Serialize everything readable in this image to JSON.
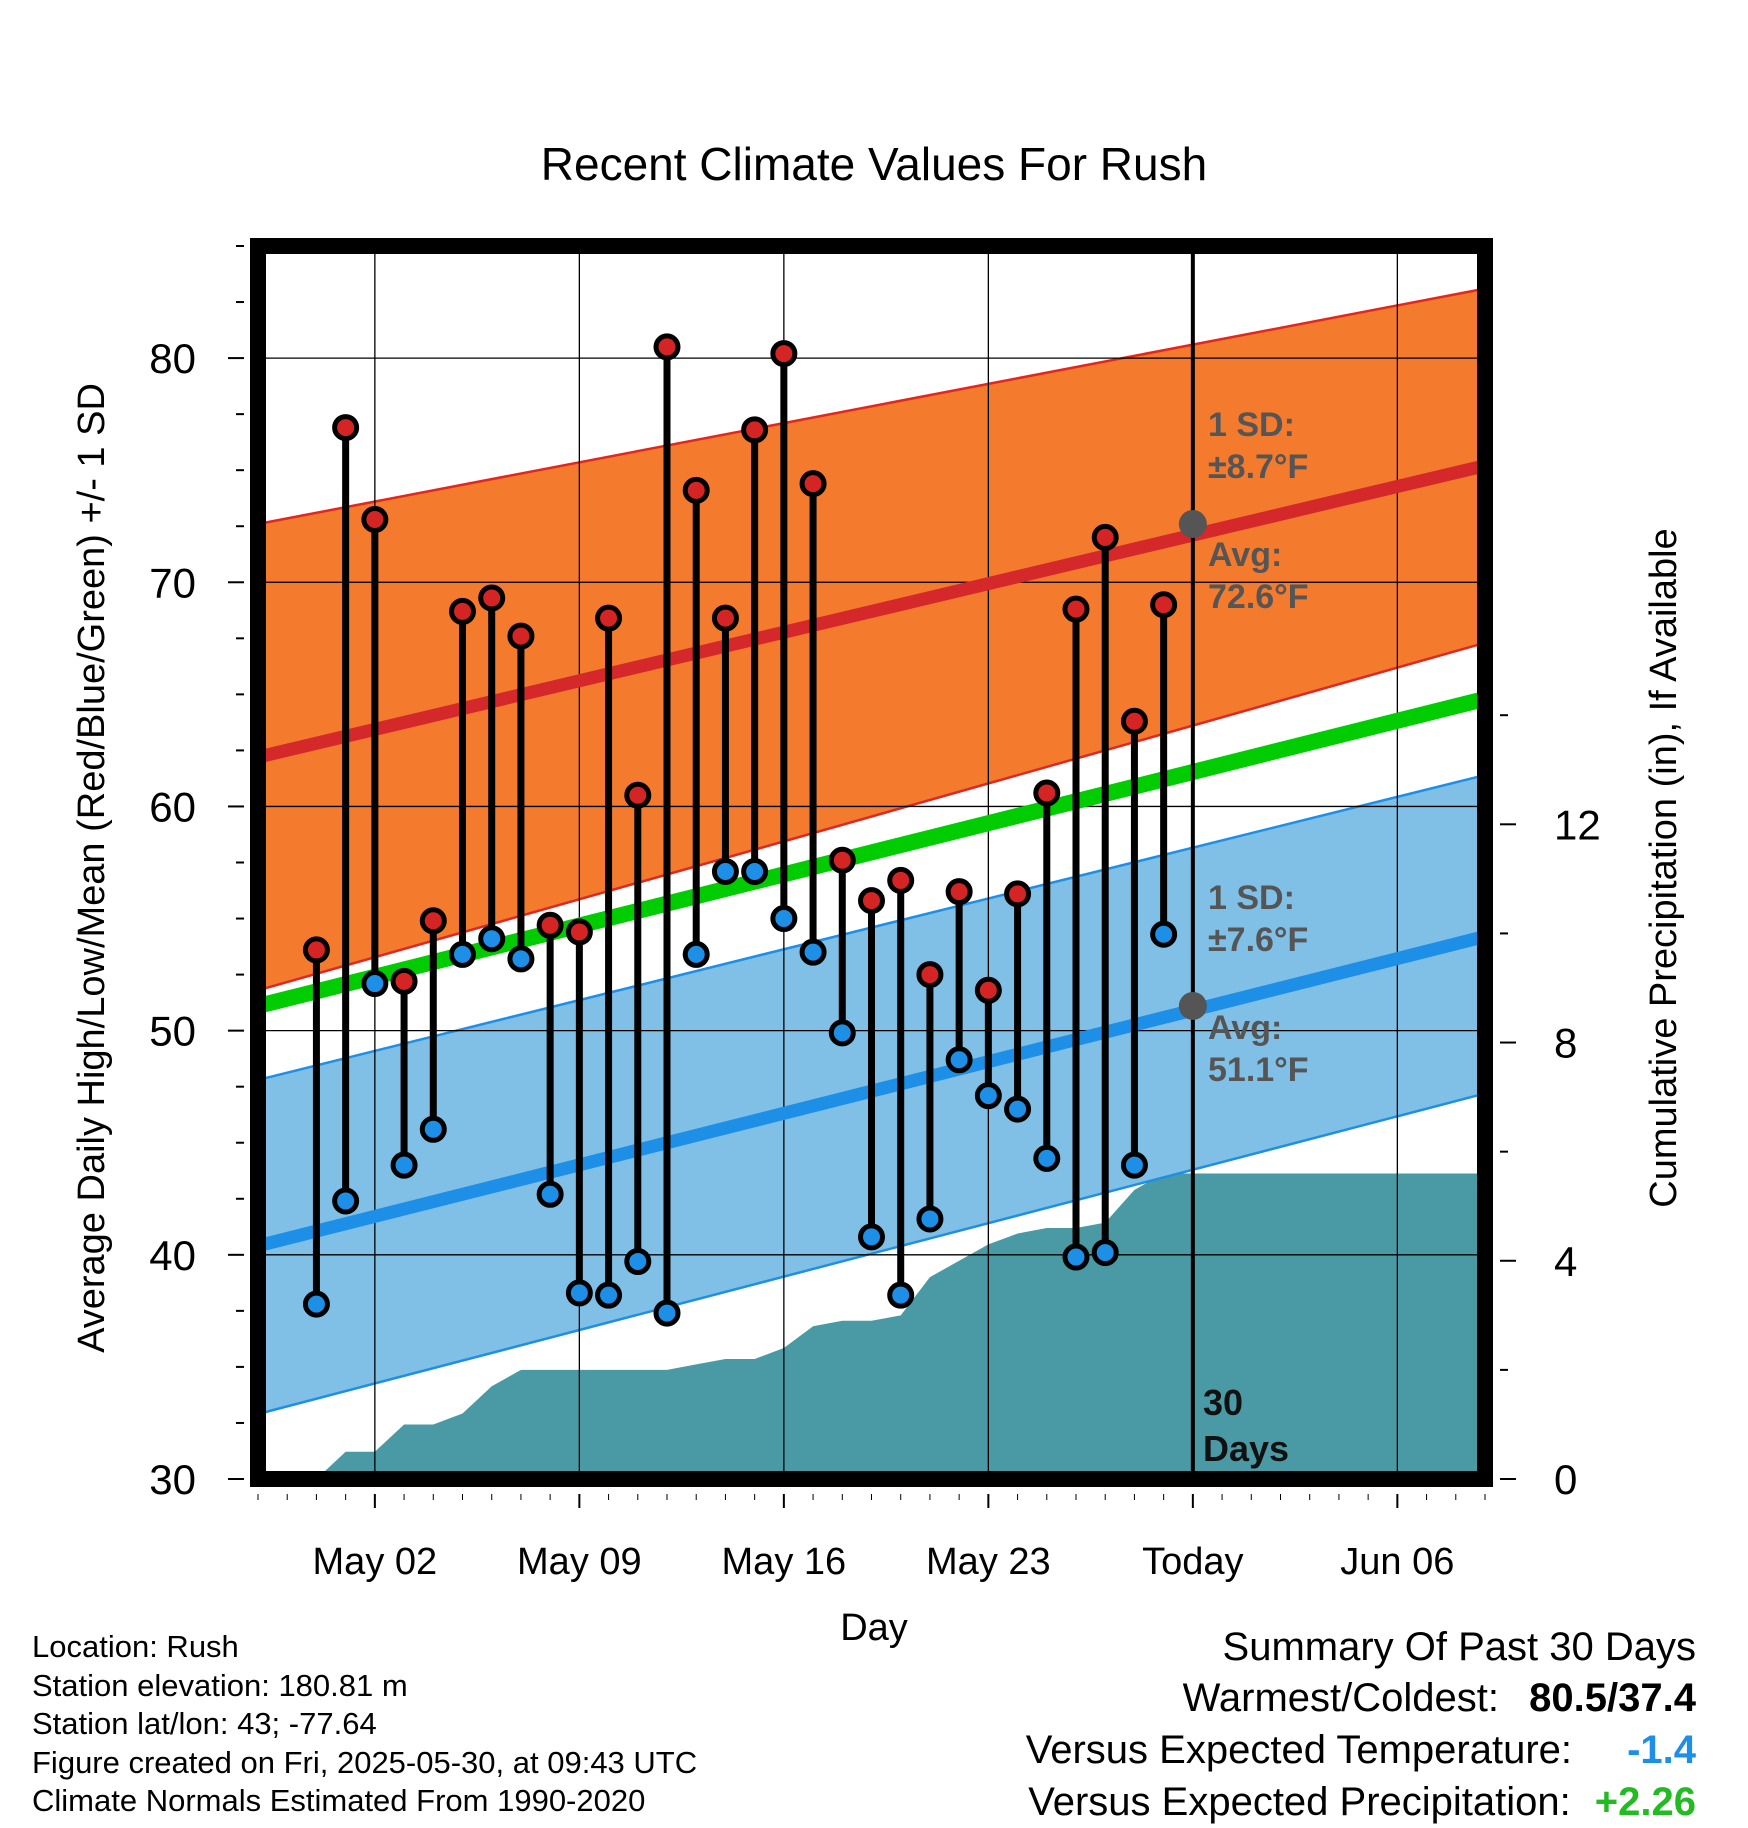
{
  "chart_data": {
    "type": "line",
    "title": "Recent Climate Values For Rush",
    "xlabel": "Day",
    "ylabel": "Average Daily High/Low/Mean (Red/Blue/Green) +/- 1 SD",
    "y2label": "Cumulative Precipitation (in), If Available",
    "ylim": [
      30,
      85
    ],
    "y2lim": [
      0,
      22.6
    ],
    "xlim": [
      "2025-04-28",
      "2025-06-09"
    ],
    "grid": true,
    "x_ticks": [
      {
        "date": "2025-05-02",
        "label": "May 02"
      },
      {
        "date": "2025-05-09",
        "label": "May 09"
      },
      {
        "date": "2025-05-16",
        "label": "May 16"
      },
      {
        "date": "2025-05-23",
        "label": "May 23"
      },
      {
        "date": "2025-05-30",
        "label": "Today"
      },
      {
        "date": "2025-06-06",
        "label": "Jun 06"
      }
    ],
    "y_ticks": [
      30,
      40,
      50,
      60,
      70,
      80
    ],
    "y2_ticks": [
      0,
      4,
      8,
      12
    ],
    "normals": {
      "x": [
        "2025-04-28",
        "2025-06-09"
      ],
      "high_avg": [
        62.2,
        75.2
      ],
      "high_sd_upper": [
        72.6,
        83.1
      ],
      "high_sd_lower": [
        51.8,
        67.3
      ],
      "mean_avg": [
        51.1,
        64.8
      ],
      "low_avg": [
        40.4,
        54.2
      ],
      "low_sd_upper": [
        47.8,
        61.4
      ],
      "low_sd_lower": [
        32.9,
        47.2
      ]
    },
    "series": [
      {
        "name": "High",
        "color": "#d42424",
        "x": [
          "2025-04-30",
          "2025-05-01",
          "2025-05-02",
          "2025-05-03",
          "2025-05-04",
          "2025-05-05",
          "2025-05-06",
          "2025-05-07",
          "2025-05-08",
          "2025-05-09",
          "2025-05-10",
          "2025-05-11",
          "2025-05-12",
          "2025-05-13",
          "2025-05-14",
          "2025-05-15",
          "2025-05-16",
          "2025-05-17",
          "2025-05-18",
          "2025-05-19",
          "2025-05-20",
          "2025-05-21",
          "2025-05-22",
          "2025-05-23",
          "2025-05-24",
          "2025-05-25",
          "2025-05-26",
          "2025-05-27",
          "2025-05-28",
          "2025-05-29"
        ],
        "values": [
          53.6,
          76.9,
          72.8,
          52.2,
          54.9,
          68.7,
          69.3,
          67.6,
          54.7,
          54.4,
          68.4,
          60.5,
          80.5,
          74.1,
          68.4,
          76.8,
          80.2,
          74.4,
          57.6,
          55.8,
          56.7,
          52.5,
          56.2,
          51.8,
          56.1,
          60.6,
          68.8,
          72.0,
          63.8,
          69.0
        ]
      },
      {
        "name": "Low",
        "color": "#1e8fe6",
        "x": [
          "2025-04-30",
          "2025-05-01",
          "2025-05-02",
          "2025-05-03",
          "2025-05-04",
          "2025-05-05",
          "2025-05-06",
          "2025-05-07",
          "2025-05-08",
          "2025-05-09",
          "2025-05-10",
          "2025-05-11",
          "2025-05-12",
          "2025-05-13",
          "2025-05-14",
          "2025-05-15",
          "2025-05-16",
          "2025-05-17",
          "2025-05-18",
          "2025-05-19",
          "2025-05-20",
          "2025-05-21",
          "2025-05-22",
          "2025-05-23",
          "2025-05-24",
          "2025-05-25",
          "2025-05-26",
          "2025-05-27",
          "2025-05-28",
          "2025-05-29"
        ],
        "values": [
          37.8,
          42.4,
          52.1,
          44.0,
          45.6,
          53.4,
          54.1,
          53.2,
          42.7,
          38.3,
          38.2,
          39.7,
          37.4,
          53.4,
          57.1,
          57.1,
          55.0,
          53.5,
          49.9,
          40.8,
          38.2,
          41.6,
          48.7,
          47.1,
          46.5,
          44.3,
          39.9,
          40.1,
          44.0,
          54.3
        ]
      },
      {
        "name": "Cumulative Precipitation",
        "color": "#4a9aa5",
        "x": [
          "2025-04-29",
          "2025-04-30",
          "2025-05-01",
          "2025-05-02",
          "2025-05-03",
          "2025-05-04",
          "2025-05-05",
          "2025-05-06",
          "2025-05-07",
          "2025-05-08",
          "2025-05-09",
          "2025-05-10",
          "2025-05-11",
          "2025-05-12",
          "2025-05-13",
          "2025-05-14",
          "2025-05-15",
          "2025-05-16",
          "2025-05-17",
          "2025-05-18",
          "2025-05-19",
          "2025-05-20",
          "2025-05-21",
          "2025-05-22",
          "2025-05-23",
          "2025-05-24",
          "2025-05-25",
          "2025-05-26",
          "2025-05-27",
          "2025-05-28",
          "2025-05-29",
          "2025-05-30",
          "2025-06-09"
        ],
        "values": [
          0.0,
          0.0,
          0.5,
          0.5,
          1.0,
          1.0,
          1.2,
          1.7,
          2.0,
          2.0,
          2.0,
          2.0,
          2.0,
          2.0,
          2.1,
          2.2,
          2.2,
          2.4,
          2.8,
          2.9,
          2.9,
          3.0,
          3.7,
          4.0,
          4.3,
          4.5,
          4.6,
          4.6,
          4.7,
          5.3,
          5.6,
          5.6,
          5.6
        ]
      }
    ],
    "annotations": {
      "high_sd": "1 SD:\n±8.7°F",
      "high_avg": "Avg:\n72.6°F",
      "low_sd": "1 SD:\n±7.6°F",
      "low_avg": "Avg:\n51.1°F",
      "days_line1": "30",
      "days_line2": "Days",
      "high_today": 72.6,
      "low_today": 51.1
    },
    "colors": {
      "high_band": "#f47a2e",
      "high_band_edge": "#e02820",
      "high_avg_line": "#d4282a",
      "low_band": "#80c0e6",
      "low_band_edge": "#1e8fe6",
      "low_avg_line": "#1e8fe6",
      "mean_line": "#00cc00",
      "precip": "#4a9aa5",
      "annotation": "#555555"
    }
  },
  "info": {
    "location": "Location: Rush",
    "elevation": "Station elevation: 180.81 m",
    "latlon": "Station lat/lon: 43; -77.64",
    "created": "Figure created on Fri, 2025-05-30, at 09:43 UTC",
    "normals": "Climate Normals Estimated From 1990-2020"
  },
  "summary": {
    "title": "Summary Of Past 30 Days",
    "warmest_label": "Warmest/Coldest:",
    "warmest_value": "80.5/37.4",
    "temp_label": "Versus Expected Temperature:",
    "temp_value": "-1.4",
    "temp_color": "#1e8fe6",
    "precip_label": "Versus Expected Precipitation:",
    "precip_value": "+2.26",
    "precip_color": "#22bb22"
  }
}
